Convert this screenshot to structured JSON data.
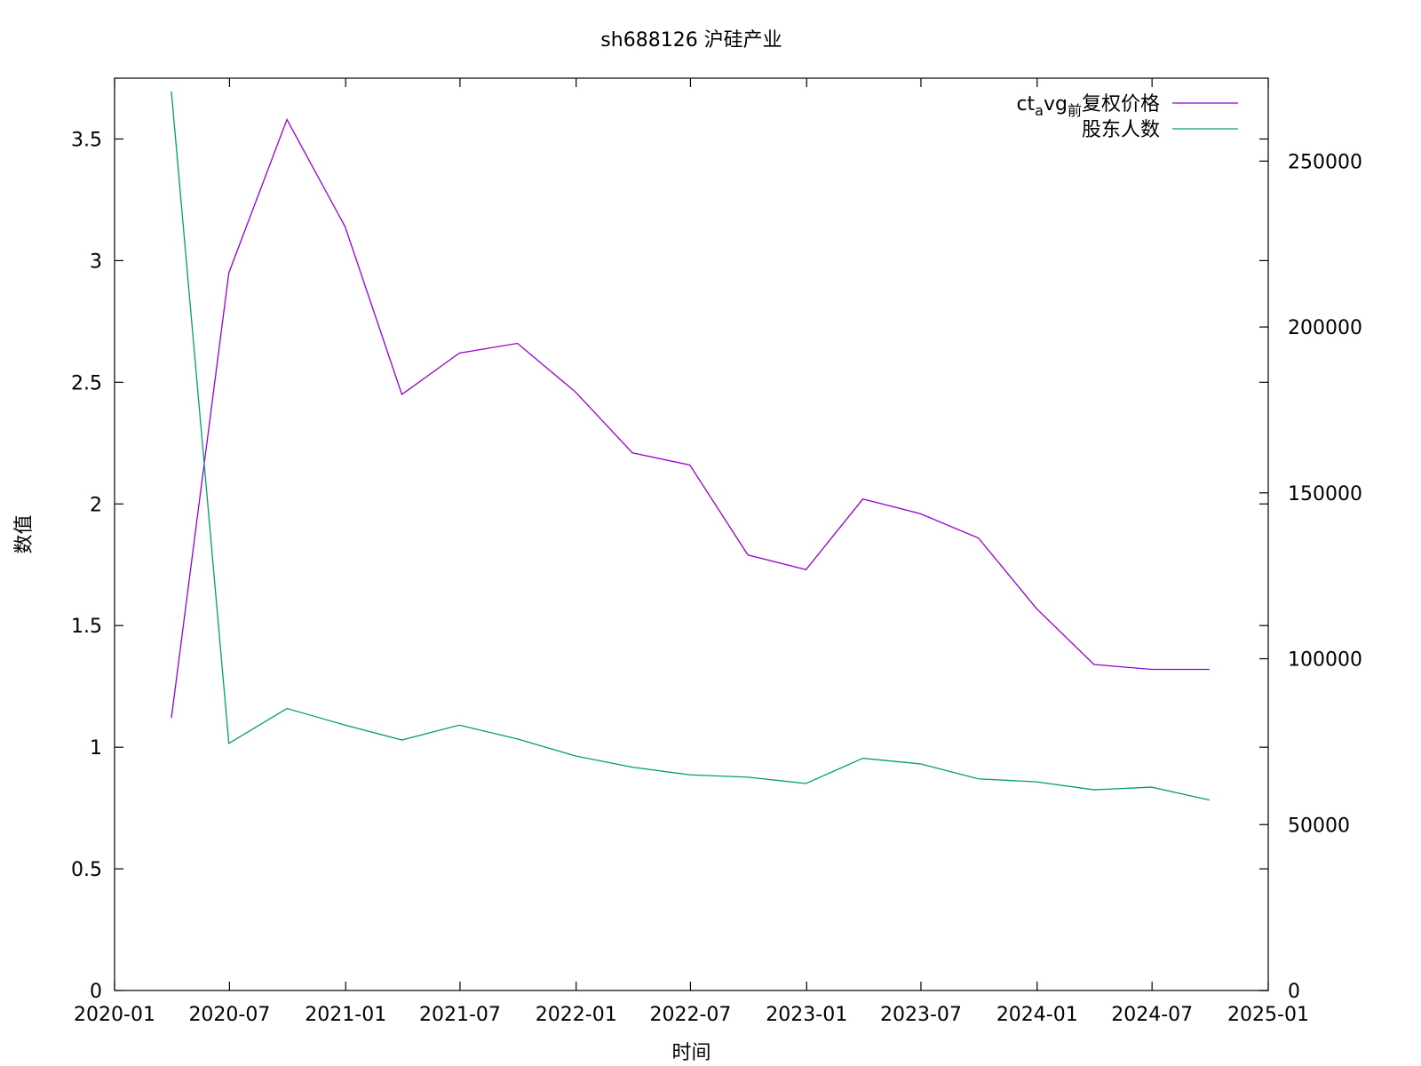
{
  "chart_data": {
    "type": "line",
    "title": "sh688126 沪硅产业",
    "xlabel": "时间",
    "ylabel": "数值",
    "y2label": "",
    "x_ticks": [
      "2020-01",
      "2020-07",
      "2021-01",
      "2021-07",
      "2022-01",
      "2022-07",
      "2023-01",
      "2023-07",
      "2024-01",
      "2024-07",
      "2025-01"
    ],
    "x_range": [
      "2020-01-01",
      "2025-01-01"
    ],
    "y_ticks": [
      "0",
      "0.5",
      "1",
      "1.5",
      "2",
      "2.5",
      "3",
      "3.5"
    ],
    "ylim": [
      0,
      3.75
    ],
    "y2_ticks": [
      "0",
      "50000",
      "100000",
      "150000",
      "200000",
      "250000"
    ],
    "y2lim": [
      0,
      275000
    ],
    "grid": false,
    "legend_position": "top-right",
    "series": [
      {
        "name": "ct_avg_前复权价格",
        "legend_main": "ct",
        "legend_sub1": "a",
        "legend_mid": "vg",
        "legend_sub2": "前",
        "legend_tail": "复权价格",
        "axis": "left",
        "color": "#9400d3",
        "x": [
          "2020-03-31",
          "2020-06-30",
          "2020-09-30",
          "2020-12-31",
          "2021-03-31",
          "2021-06-30",
          "2021-09-30",
          "2021-12-31",
          "2022-03-31",
          "2022-06-30",
          "2022-09-30",
          "2022-12-31",
          "2023-03-31",
          "2023-06-30",
          "2023-09-30",
          "2023-12-31",
          "2024-03-31",
          "2024-06-30",
          "2024-09-30"
        ],
        "values": [
          1.12,
          2.95,
          3.58,
          3.14,
          2.45,
          2.62,
          2.66,
          2.46,
          2.21,
          2.16,
          1.79,
          1.73,
          2.02,
          1.96,
          1.86,
          1.57,
          1.34,
          1.32,
          1.32
        ]
      },
      {
        "name": "股东人数",
        "legend_main": "股东人数",
        "axis": "right",
        "color": "#009e73",
        "x": [
          "2020-03-31",
          "2020-06-30",
          "2020-09-30",
          "2020-12-31",
          "2021-03-31",
          "2021-06-30",
          "2021-09-30",
          "2021-12-31",
          "2022-03-31",
          "2022-06-30",
          "2022-09-30",
          "2022-12-31",
          "2023-03-31",
          "2023-06-30",
          "2023-09-30",
          "2023-12-31",
          "2024-03-31",
          "2024-06-30",
          "2024-09-30"
        ],
        "values": [
          271000,
          74500,
          85000,
          80000,
          75500,
          80000,
          75800,
          70700,
          67300,
          65000,
          64300,
          62400,
          70000,
          68300,
          63800,
          62900,
          60500,
          61300,
          57400
        ]
      }
    ]
  }
}
